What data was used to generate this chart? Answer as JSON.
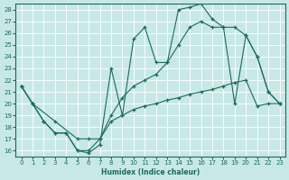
{
  "xlabel": "Humidex (Indice chaleur)",
  "bg_color": "#c8e8e8",
  "line_color": "#1a6b5a",
  "grid_color": "#ffffff",
  "xlim": [
    -0.5,
    23.5
  ],
  "ylim": [
    15.5,
    28.5
  ],
  "xticks": [
    0,
    1,
    2,
    3,
    4,
    5,
    6,
    7,
    8,
    9,
    10,
    11,
    12,
    13,
    14,
    15,
    16,
    17,
    18,
    19,
    20,
    21,
    22,
    23
  ],
  "yticks": [
    16,
    17,
    18,
    19,
    20,
    21,
    22,
    23,
    24,
    25,
    26,
    27,
    28
  ],
  "line1_x": [
    0,
    1,
    2,
    3,
    4,
    5,
    6,
    7,
    8,
    9,
    10,
    11,
    12,
    13,
    14,
    15,
    16,
    17,
    18,
    19,
    20,
    21,
    22,
    23
  ],
  "line1_y": [
    21.5,
    20.0,
    18.5,
    17.5,
    17.5,
    16.0,
    15.8,
    16.5,
    23.0,
    19.0,
    25.5,
    26.5,
    23.5,
    23.5,
    28.0,
    28.2,
    28.5,
    27.2,
    26.5,
    20.0,
    25.8,
    24.0,
    21.0,
    20.0
  ],
  "line2_x": [
    0,
    1,
    2,
    3,
    4,
    5,
    6,
    7,
    8,
    9,
    10,
    11,
    12,
    13,
    14,
    15,
    16,
    17,
    18,
    19,
    20,
    21,
    22,
    23
  ],
  "line2_y": [
    21.5,
    20.0,
    18.5,
    17.5,
    17.5,
    16.0,
    16.0,
    17.0,
    19.0,
    20.5,
    21.5,
    22.0,
    22.5,
    23.5,
    25.0,
    26.5,
    27.0,
    26.5,
    26.5,
    26.5,
    25.8,
    24.0,
    21.0,
    20.0
  ],
  "line3_x": [
    0,
    1,
    3,
    5,
    6,
    7,
    8,
    9,
    10,
    11,
    12,
    13,
    14,
    15,
    16,
    17,
    18,
    19,
    20,
    21,
    22,
    23
  ],
  "line3_y": [
    21.5,
    20.0,
    18.5,
    17.0,
    17.0,
    17.0,
    18.5,
    19.0,
    19.5,
    19.8,
    20.0,
    20.3,
    20.5,
    20.8,
    21.0,
    21.2,
    21.5,
    21.8,
    22.0,
    19.8,
    20.0,
    20.0
  ]
}
